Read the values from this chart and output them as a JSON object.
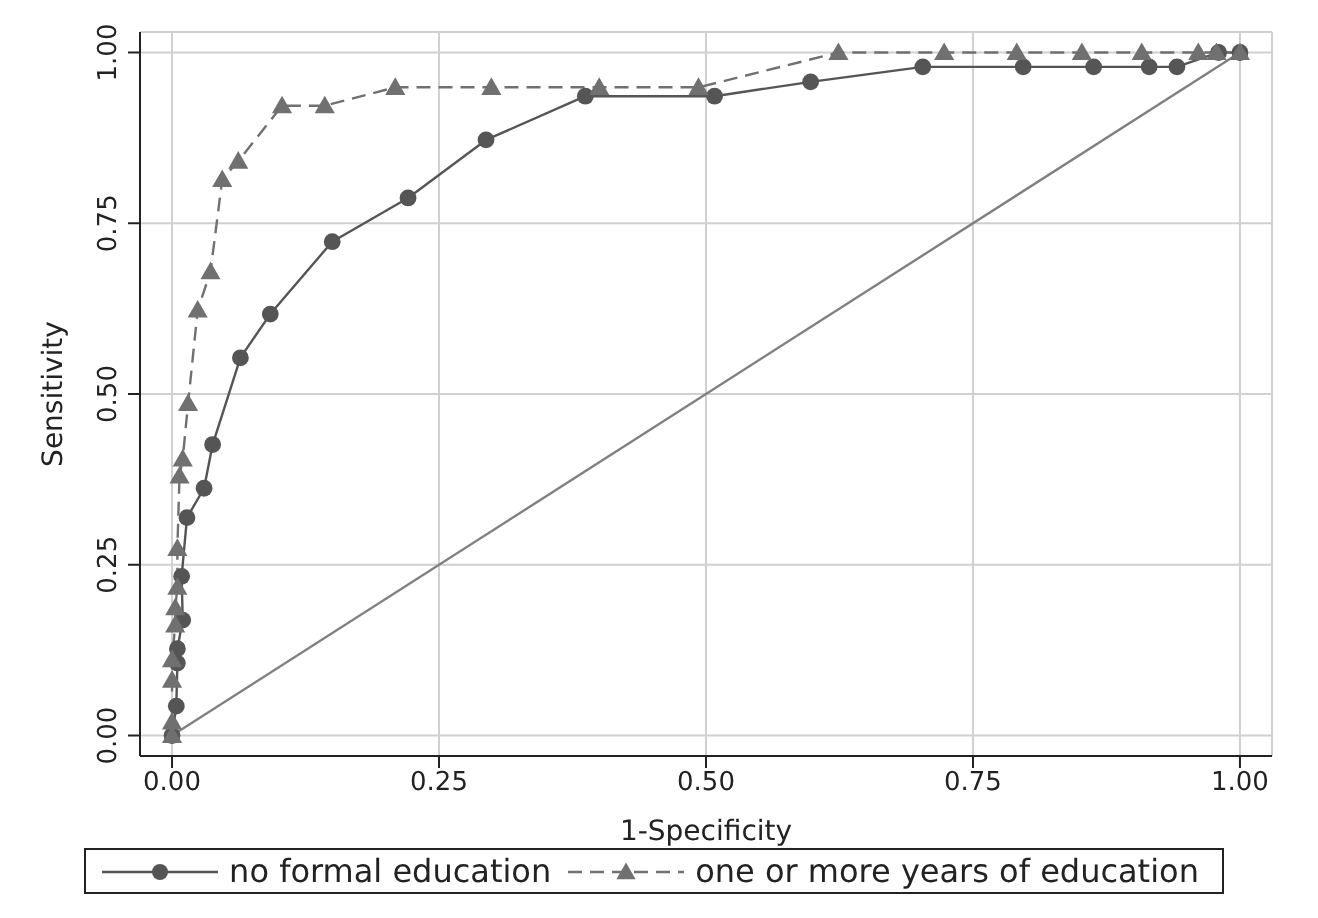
{
  "chart_data": {
    "type": "line",
    "xlabel": "1-Specificity",
    "ylabel": "Sensitivity",
    "xlim": [
      -0.03,
      1.03
    ],
    "ylim": [
      -0.03,
      1.03
    ],
    "xticks": [
      {
        "value": 0,
        "label": "0.00"
      },
      {
        "value": 0.25,
        "label": "0.25"
      },
      {
        "value": 0.5,
        "label": "0.50"
      },
      {
        "value": 0.75,
        "label": "0.75"
      },
      {
        "value": 1,
        "label": "1.00"
      }
    ],
    "yticks": [
      {
        "value": 0,
        "label": "0.00"
      },
      {
        "value": 0.25,
        "label": "0.25"
      },
      {
        "value": 0.5,
        "label": "0.50"
      },
      {
        "value": 0.75,
        "label": "0.75"
      },
      {
        "value": 1,
        "label": "1.00"
      }
    ],
    "grid": true,
    "legend": "bottom",
    "series": [
      {
        "name": "no formal education",
        "color": "#555555",
        "marker": "circle",
        "line_style": "solid",
        "x": [
          0,
          0.004,
          0.005,
          0.005,
          0.01,
          0.009,
          0.014,
          0.03,
          0.038,
          0.064,
          0.092,
          0.15,
          0.221,
          0.294,
          0.387,
          0.508,
          0.598,
          0.703,
          0.797,
          0.863,
          0.915,
          0.941,
          0.98,
          1
        ],
        "values": [
          0,
          0.043,
          0.106,
          0.127,
          0.169,
          0.233,
          0.319,
          0.362,
          0.426,
          0.553,
          0.617,
          0.723,
          0.787,
          0.872,
          0.936,
          0.936,
          0.957,
          0.979,
          0.979,
          0.979,
          0.979,
          0.979,
          1,
          1
        ]
      },
      {
        "name": "one or more years of education",
        "color": "#707070",
        "marker": "triangle",
        "line_style": "dashed",
        "x": [
          0,
          0,
          0,
          0,
          0.003,
          0.003,
          0.005,
          0.005,
          0.007,
          0.01,
          0.015,
          0.024,
          0.036,
          0.047,
          0.062,
          0.103,
          0.143,
          0.209,
          0.299,
          0.4,
          0.493,
          0.624,
          0.723,
          0.791,
          0.852,
          0.908,
          0.961,
          0.978,
          1
        ],
        "values": [
          0,
          0.02,
          0.081,
          0.111,
          0.162,
          0.187,
          0.217,
          0.274,
          0.38,
          0.405,
          0.486,
          0.623,
          0.679,
          0.814,
          0.841,
          0.922,
          0.922,
          0.949,
          0.949,
          0.949,
          0.949,
          1,
          1,
          1,
          1,
          1,
          1,
          1,
          1
        ]
      },
      {
        "color": "#808080",
        "marker": "none",
        "line_style": "solid",
        "x": [
          0,
          1
        ],
        "values": [
          0,
          1
        ]
      }
    ]
  }
}
